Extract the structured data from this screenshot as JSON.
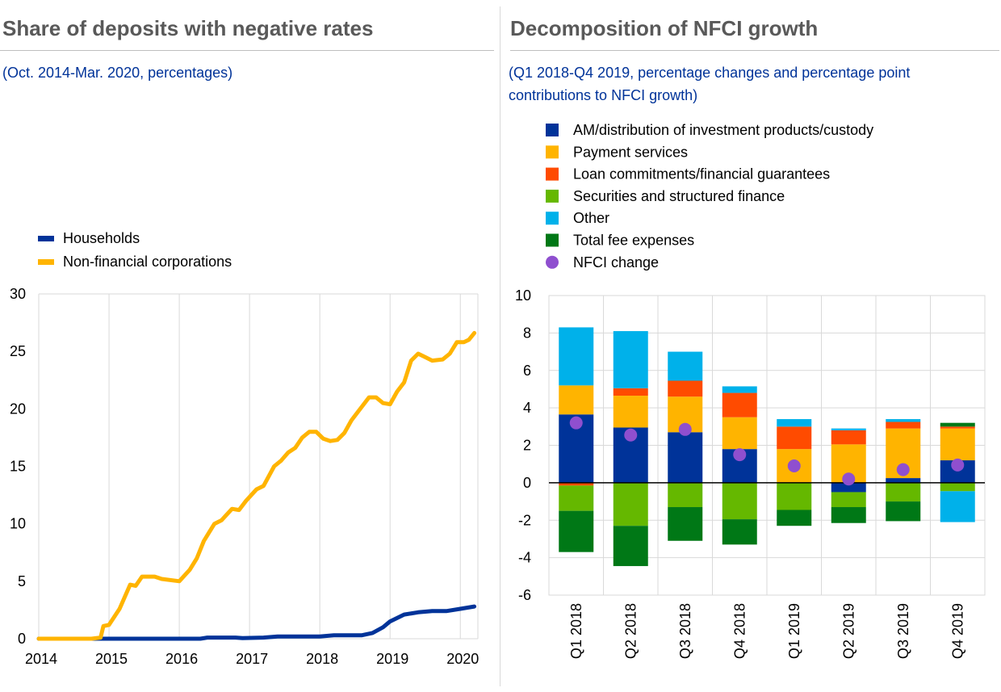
{
  "left": {
    "title": "Share of deposits with negative rates",
    "subtitle": "(Oct. 2014-Mar. 2020, percentages)"
  },
  "right": {
    "title": "Decomposition of NFCI growth",
    "subtitle": "(Q1 2018-Q4 2019, percentage changes and percentage point contributions to NFCI growth)"
  },
  "colors": {
    "households": "#003399",
    "nfc": "#FFB400",
    "am": "#003399",
    "payment": "#FFB400",
    "loan": "#FF4B00",
    "securities": "#65B800",
    "other": "#00B1EA",
    "fee": "#007816",
    "nfci": "#8F4FCF"
  },
  "chart_data": [
    {
      "type": "line",
      "legend": [
        "Households",
        "Non-financial corporations"
      ],
      "xticks": [
        "2014",
        "2015",
        "2016",
        "2017",
        "2018",
        "2019",
        "2020"
      ],
      "yticks": [
        "0",
        "5",
        "10",
        "15",
        "20",
        "25",
        "30"
      ],
      "ylim": [
        0,
        30
      ],
      "xlim": [
        2014.0,
        2020.25
      ],
      "grid": true,
      "series": [
        {
          "name": "Households",
          "points": [
            [
              2014.0,
              0
            ],
            [
              2014.5,
              0
            ],
            [
              2015.0,
              0
            ],
            [
              2015.5,
              0
            ],
            [
              2016.0,
              0
            ],
            [
              2016.3,
              0
            ],
            [
              2016.4,
              0.1
            ],
            [
              2016.8,
              0.1
            ],
            [
              2016.9,
              0.05
            ],
            [
              2017.2,
              0.1
            ],
            [
              2017.4,
              0.2
            ],
            [
              2017.7,
              0.2
            ],
            [
              2018.0,
              0.2
            ],
            [
              2018.2,
              0.3
            ],
            [
              2018.6,
              0.3
            ],
            [
              2018.75,
              0.5
            ],
            [
              2018.9,
              1.0
            ],
            [
              2019.0,
              1.5
            ],
            [
              2019.2,
              2.1
            ],
            [
              2019.4,
              2.3
            ],
            [
              2019.6,
              2.4
            ],
            [
              2019.8,
              2.4
            ],
            [
              2020.0,
              2.6
            ],
            [
              2020.2,
              2.8
            ]
          ]
        },
        {
          "name": "Non-financial corporations",
          "points": [
            [
              2014.0,
              0
            ],
            [
              2014.5,
              0
            ],
            [
              2014.75,
              0
            ],
            [
              2014.88,
              0.1
            ],
            [
              2014.92,
              1.1
            ],
            [
              2015.0,
              1.2
            ],
            [
              2015.15,
              2.6
            ],
            [
              2015.3,
              4.7
            ],
            [
              2015.38,
              4.6
            ],
            [
              2015.47,
              5.4
            ],
            [
              2015.65,
              5.4
            ],
            [
              2015.75,
              5.2
            ],
            [
              2016.0,
              5.0
            ],
            [
              2016.15,
              6.0
            ],
            [
              2016.25,
              7.0
            ],
            [
              2016.35,
              8.5
            ],
            [
              2016.5,
              10.0
            ],
            [
              2016.6,
              10.3
            ],
            [
              2016.75,
              11.3
            ],
            [
              2016.85,
              11.2
            ],
            [
              2016.95,
              12.0
            ],
            [
              2017.1,
              13.0
            ],
            [
              2017.2,
              13.3
            ],
            [
              2017.35,
              15.0
            ],
            [
              2017.45,
              15.5
            ],
            [
              2017.55,
              16.2
            ],
            [
              2017.65,
              16.6
            ],
            [
              2017.75,
              17.5
            ],
            [
              2017.85,
              18.0
            ],
            [
              2017.95,
              18.0
            ],
            [
              2018.05,
              17.4
            ],
            [
              2018.15,
              17.2
            ],
            [
              2018.25,
              17.3
            ],
            [
              2018.35,
              17.9
            ],
            [
              2018.45,
              19.0
            ],
            [
              2018.6,
              20.2
            ],
            [
              2018.7,
              21.0
            ],
            [
              2018.8,
              21.0
            ],
            [
              2018.9,
              20.5
            ],
            [
              2019.0,
              20.4
            ],
            [
              2019.1,
              21.5
            ],
            [
              2019.2,
              22.3
            ],
            [
              2019.3,
              24.2
            ],
            [
              2019.4,
              24.8
            ],
            [
              2019.5,
              24.5
            ],
            [
              2019.6,
              24.2
            ],
            [
              2019.75,
              24.3
            ],
            [
              2019.85,
              24.8
            ],
            [
              2019.95,
              25.8
            ],
            [
              2020.05,
              25.8
            ],
            [
              2020.12,
              26.0
            ],
            [
              2020.2,
              26.6
            ]
          ]
        }
      ]
    },
    {
      "type": "bar",
      "stacked": true,
      "categories": [
        "Q1 2018",
        "Q2 2018",
        "Q3 2018",
        "Q4 2018",
        "Q1 2019",
        "Q2 2019",
        "Q3 2019",
        "Q4 2019"
      ],
      "yticks": [
        "10",
        "8",
        "6",
        "4",
        "2",
        "0",
        "-2",
        "-4",
        "-6"
      ],
      "ylim": [
        -6,
        10
      ],
      "grid": true,
      "series": [
        {
          "name": "AM/distribution of investment products/custody",
          "values": [
            3.65,
            2.95,
            2.7,
            1.8,
            0,
            -0.5,
            0.25,
            1.2
          ]
        },
        {
          "name": "Payment services",
          "values": [
            1.55,
            1.7,
            1.9,
            1.7,
            1.8,
            2.05,
            2.65,
            1.7
          ]
        },
        {
          "name": "Loan commitments/financial guarantees",
          "values": [
            -0.15,
            0.4,
            0.85,
            1.3,
            1.2,
            0.75,
            0.35,
            0.1
          ]
        },
        {
          "name": "Securities and structured finance",
          "values": [
            -1.35,
            -2.3,
            -1.3,
            -1.95,
            -1.45,
            -0.8,
            -1.0,
            -0.45
          ]
        },
        {
          "name": "Other",
          "values": [
            3.1,
            3.05,
            1.55,
            0.35,
            0.4,
            0.1,
            0.15,
            -1.65
          ]
        },
        {
          "name": "Total fee expenses",
          "values": [
            -2.2,
            -2.15,
            -1.8,
            -1.35,
            -0.85,
            -0.85,
            -1.05,
            0.2
          ]
        }
      ],
      "nfci_change": {
        "name": "NFCI change",
        "values": [
          3.2,
          2.55,
          2.85,
          1.5,
          0.9,
          0.2,
          0.7,
          0.95
        ]
      }
    }
  ]
}
